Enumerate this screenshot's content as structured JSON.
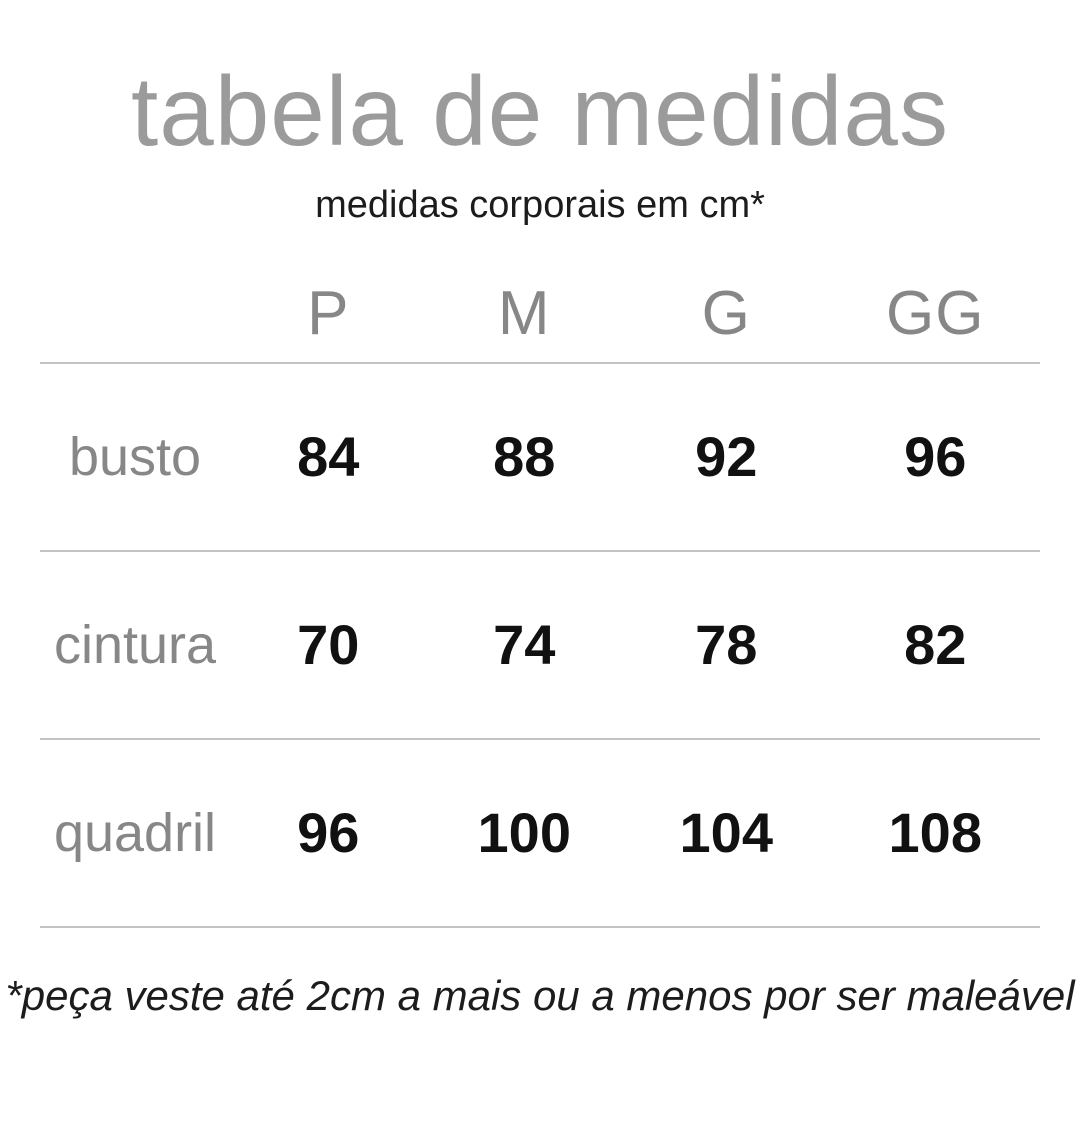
{
  "chart_data": {
    "type": "table",
    "title": "tabela de medidas",
    "subtitle": "medidas corporais em cm*",
    "size_columns": [
      "P",
      "M",
      "G",
      "GG"
    ],
    "rows": [
      {
        "label": "busto",
        "values": [
          84,
          88,
          92,
          96
        ]
      },
      {
        "label": "cintura",
        "values": [
          70,
          74,
          78,
          82
        ]
      },
      {
        "label": "quadril",
        "values": [
          96,
          100,
          104,
          108
        ]
      }
    ],
    "footnote": "*peça veste até 2cm a mais ou a menos por ser maleável"
  },
  "colors": {
    "background": "#ffffff",
    "title_gray": "#9b9b9b",
    "label_gray": "#878787",
    "value_black": "#111111",
    "divider_gray": "#c3c3c3"
  }
}
